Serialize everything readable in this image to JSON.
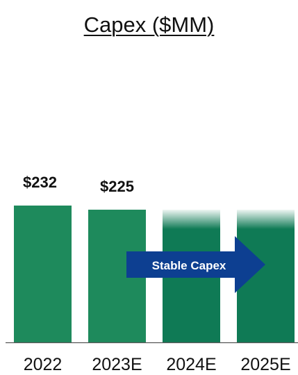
{
  "chart_data": {
    "type": "bar",
    "title": "Capex ($MM)",
    "categories": [
      "2022",
      "2023E",
      "2024E",
      "2025E"
    ],
    "values": [
      232,
      225,
      225,
      225
    ],
    "data_labels": [
      "$232",
      "$225",
      "",
      ""
    ],
    "estimated_bars": [
      false,
      false,
      true,
      true
    ],
    "annotation": "Stable Capex",
    "ylim": [
      0,
      232
    ],
    "grid": false,
    "legend": "none",
    "xlabel": "",
    "ylabel": ""
  },
  "colors": {
    "bar_actual": "#1e8a5c",
    "bar_projected": "#0f7a55",
    "arrow": "#0d3f91",
    "arrow_text": "#ffffff",
    "axis": "#555555",
    "text": "#111111"
  }
}
